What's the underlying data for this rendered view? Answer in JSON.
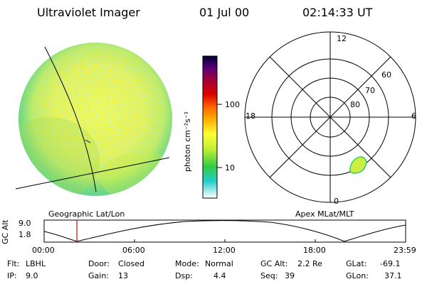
{
  "header": {
    "instrument": "Ultraviolet Imager",
    "date": "01 Jul 00",
    "time": "02:14:33 UT"
  },
  "colorbar": {
    "unit_label": "photon cm⁻²s⁻¹",
    "ticks": [
      "100",
      "10"
    ],
    "stops": [
      "#000033",
      "#550077",
      "#aa0033",
      "#dd0000",
      "#ff6600",
      "#ffaa00",
      "#ffff33",
      "#bbee33",
      "#33cc44",
      "#22cccc",
      "#ffffff"
    ]
  },
  "polar_plot": {
    "mlt_labels": {
      "top": "12",
      "left": "18",
      "right": "6",
      "bottom": "0"
    },
    "lat_labels": [
      "60",
      "70",
      "80"
    ]
  },
  "map_labels": {
    "geographic": "Geographic Lat/Lon",
    "apex": "Apex MLat/MLT"
  },
  "orbit_plot": {
    "ylabel": "GC Alt",
    "y_ticks": [
      "9.0",
      "1.8"
    ],
    "x_ticks": [
      "00:00",
      "06:00",
      "12:00",
      "18:00",
      "23:59"
    ],
    "marker_time": "02:14"
  },
  "status": {
    "flt_label": "Flt:",
    "flt_value": "LBHL",
    "ip_label": "IP:",
    "ip_value": "9.0",
    "door_label": "Door:",
    "door_value": "Closed",
    "gain_label": "Gain:",
    "gain_value": "13",
    "mode_label": "Mode:",
    "mode_value": "Normal",
    "dsp_label": "Dsp:",
    "dsp_value": "4.4",
    "gcalt_label": "GC Alt:",
    "gcalt_value": "2.2 Re",
    "seq_label": "Seq:",
    "seq_value": "39",
    "glat_label": "GLat:",
    "glat_value": "-69.1",
    "glon_label": "GLon:",
    "glon_value": "37.1"
  },
  "colors": {
    "marker": "#dd0000",
    "aurora_fill": "#ccee44",
    "aurora_edge": "#33cc66"
  }
}
